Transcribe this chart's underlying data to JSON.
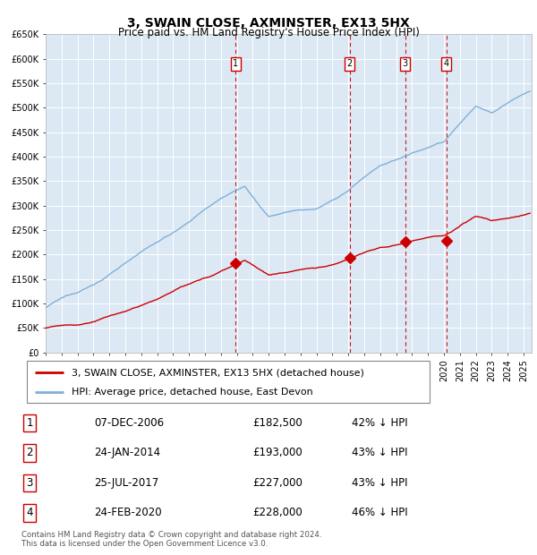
{
  "title": "3, SWAIN CLOSE, AXMINSTER, EX13 5HX",
  "subtitle": "Price paid vs. HM Land Registry's House Price Index (HPI)",
  "ylim": [
    0,
    650000
  ],
  "yticks": [
    0,
    50000,
    100000,
    150000,
    200000,
    250000,
    300000,
    350000,
    400000,
    450000,
    500000,
    550000,
    600000,
    650000
  ],
  "ytick_labels": [
    "£0",
    "£50K",
    "£100K",
    "£150K",
    "£200K",
    "£250K",
    "£300K",
    "£350K",
    "£400K",
    "£450K",
    "£500K",
    "£550K",
    "£600K",
    "£650K"
  ],
  "xlim_start": 1995.0,
  "xlim_end": 2025.5,
  "background_color": "#ffffff",
  "chart_bg_color": "#dce9f5",
  "grid_color": "#ffffff",
  "red_line_color": "#cc0000",
  "blue_line_color": "#7fb0d8",
  "vline_color": "#cc0000",
  "transactions": [
    {
      "num": 1,
      "date": "07-DEC-2006",
      "year": 2006.92,
      "price": 182500,
      "pct": "42%",
      "dir": "↓"
    },
    {
      "num": 2,
      "date": "24-JAN-2014",
      "year": 2014.07,
      "price": 193000,
      "pct": "43%",
      "dir": "↓"
    },
    {
      "num": 3,
      "date": "25-JUL-2017",
      "year": 2017.56,
      "price": 227000,
      "pct": "43%",
      "dir": "↓"
    },
    {
      "num": 4,
      "date": "24-FEB-2020",
      "year": 2020.15,
      "price": 228000,
      "pct": "46%",
      "dir": "↓"
    }
  ],
  "legend_entries": [
    {
      "label": "3, SWAIN CLOSE, AXMINSTER, EX13 5HX (detached house)",
      "color": "#cc0000"
    },
    {
      "label": "HPI: Average price, detached house, East Devon",
      "color": "#7fb0d8"
    }
  ],
  "footer": "Contains HM Land Registry data © Crown copyright and database right 2024.\nThis data is licensed under the Open Government Licence v3.0.",
  "title_fontsize": 10,
  "subtitle_fontsize": 8.5,
  "tick_fontsize": 7,
  "legend_fontsize": 8,
  "table_fontsize": 8.5
}
